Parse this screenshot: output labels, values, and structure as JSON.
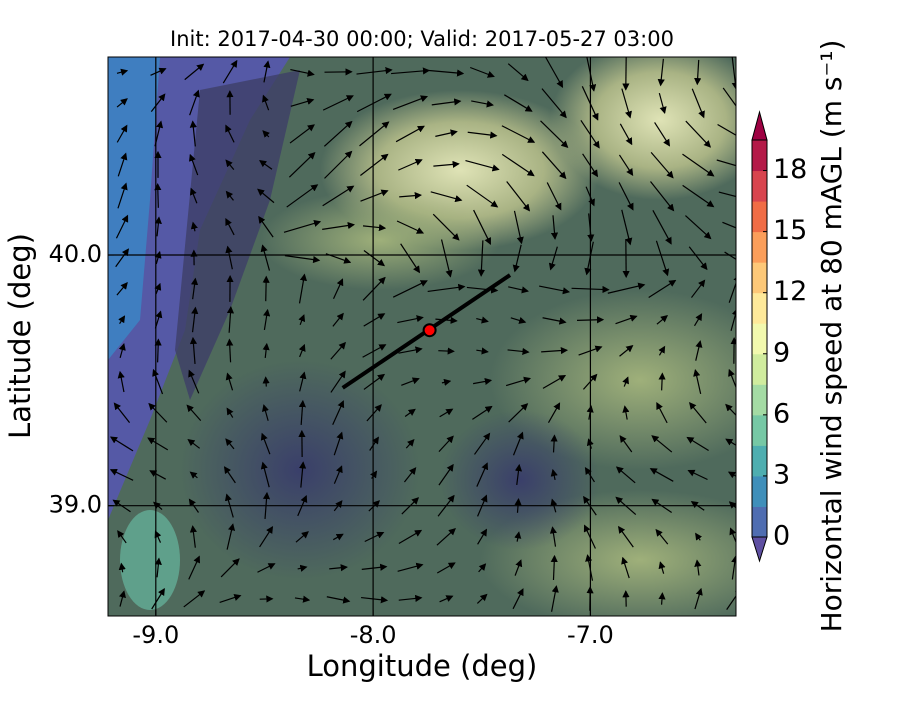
{
  "chart_data": {
    "type": "map",
    "title": "Init: 2017-04-30 00:00; Valid: 2017-05-27 03:00",
    "xlabel": "Longitude (deg)",
    "ylabel": "Latitude (deg)",
    "xlim": [
      -9.22,
      -6.33
    ],
    "ylim": [
      38.56,
      40.79
    ],
    "xticks": [
      {
        "value": -9,
        "label": "-9.0"
      },
      {
        "value": -8,
        "label": "-8.0"
      },
      {
        "value": -7,
        "label": "-7.0"
      }
    ],
    "yticks": [
      {
        "value": 39,
        "label": "39.0"
      },
      {
        "value": 40,
        "label": "40.0"
      }
    ],
    "grid": true,
    "marker": {
      "lon": -7.74,
      "lat": 39.7,
      "color": "#ff0000"
    },
    "section": {
      "lon": [
        -8.14,
        -7.37
      ],
      "lat": [
        39.47,
        39.92
      ]
    },
    "colorbar": {
      "label": "Horizontal wind speed at 80 mAGL (m s⁻¹)",
      "levels": [
        0,
        1.5,
        3,
        4.5,
        6,
        7.5,
        9,
        10.5,
        12,
        13.5,
        15,
        16.5,
        18,
        19.5
      ],
      "colors": [
        "#4f6db1",
        "#3f8fba",
        "#4eaeb0",
        "#76c8a5",
        "#a4dba4",
        "#d0ec9e",
        "#f2f9ae",
        "#fee99a",
        "#fdc878",
        "#fb9e5a",
        "#f06c45",
        "#d8444e",
        "#b41a48"
      ],
      "under_color": "#5e4fa2",
      "over_color": "#9e0142",
      "ticks": [
        0,
        3,
        6,
        9,
        12,
        15,
        18
      ]
    }
  }
}
